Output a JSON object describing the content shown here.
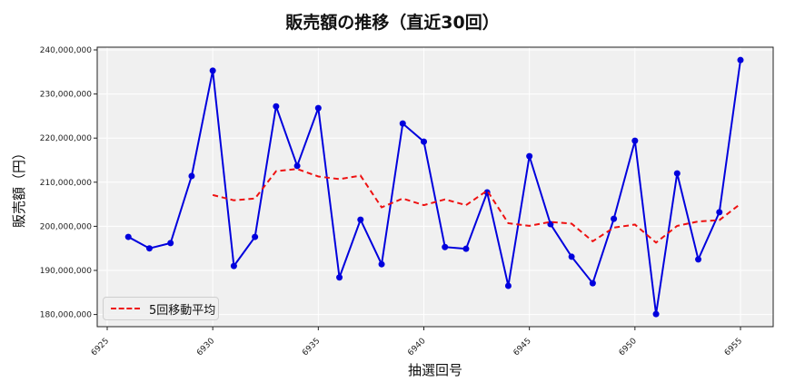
{
  "title": "販売額の推移（直近30回）",
  "legend": {
    "items": [
      {
        "label": "5回移動平均",
        "color": "#ee1111",
        "style": "dashed"
      }
    ]
  },
  "colors": {
    "series": "#0000dd",
    "moving_average": "#ee1111",
    "plot_bg": "#f0f0f0",
    "grid": "#ffffff"
  },
  "chart_data": {
    "type": "line",
    "title": "販売額の推移（直近30回）",
    "xlabel": "抽選回号",
    "ylabel": "販売額（円）",
    "x": [
      6926,
      6927,
      6928,
      6929,
      6930,
      6931,
      6932,
      6933,
      6934,
      6935,
      6936,
      6937,
      6938,
      6939,
      6940,
      6941,
      6942,
      6943,
      6944,
      6945,
      6946,
      6947,
      6948,
      6949,
      6950,
      6951,
      6952,
      6953,
      6954,
      6955
    ],
    "series": [
      {
        "name": "販売額",
        "color": "#0000dd",
        "marker": "circle",
        "values": [
          197600000,
          195000000,
          196200000,
          211400000,
          235300000,
          191000000,
          197600000,
          227200000,
          213700000,
          226800000,
          188400000,
          201500000,
          191400000,
          223300000,
          219200000,
          195300000,
          194900000,
          207700000,
          186500000,
          215900000,
          200500000,
          193100000,
          187100000,
          201700000,
          219400000,
          180100000,
          212000000,
          192500000,
          203200000,
          237700000
        ]
      },
      {
        "name": "5回移動平均",
        "color": "#ee1111",
        "style": "dashed",
        "values": [
          null,
          null,
          null,
          null,
          207100000,
          205900000,
          206300000,
          212500000,
          213000000,
          211300000,
          210700000,
          211500000,
          204300000,
          206300000,
          204800000,
          206100000,
          204800000,
          208100000,
          200700000,
          200100000,
          201000000,
          200600000,
          196600000,
          199700000,
          200400000,
          196300000,
          200100000,
          201100000,
          201400000,
          205100000
        ]
      }
    ],
    "xticks": [
      6925,
      6930,
      6935,
      6940,
      6945,
      6950,
      6955
    ],
    "yticks": [
      "180,000,000",
      "190,000,000",
      "200,000,000",
      "210,000,000",
      "220,000,000",
      "230,000,000",
      "240,000,000"
    ],
    "ylim": [
      177500000,
      240500000
    ],
    "xlim": [
      6924.5,
      6956.5
    ],
    "grid": true,
    "legend_position": "lower left"
  }
}
